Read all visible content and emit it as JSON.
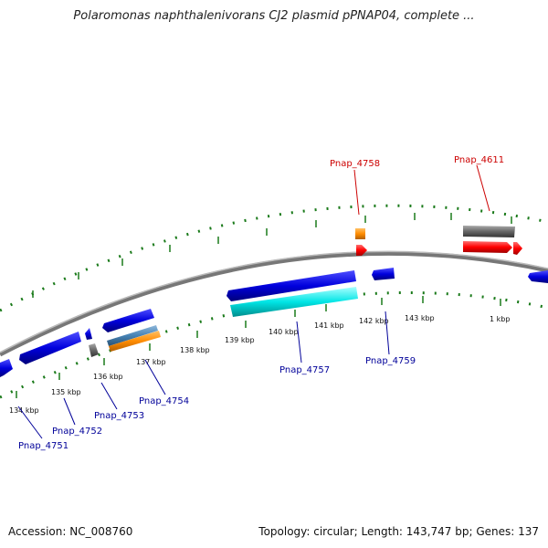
{
  "title": "Polaromonas naphthalenivorans CJ2 plasmid pPNAP04, complete ...",
  "footer": {
    "accession": "Accession: NC_008760",
    "summary": "Topology: circular; Length: 143,747 bp; Genes: 137"
  },
  "colors": {
    "backbone": "#888888",
    "tick": "#1a7a1a",
    "forward_gene": "#0000dd",
    "reverse_gene": "#0000dd",
    "cyan_gene": "#00e5e5",
    "orange_gene": "#ff8c00",
    "red_gene": "#ff0000",
    "gray_gene": "#666666",
    "steel_gene": "#4682b4",
    "label_red": "#cc0000",
    "label_blue": "#000099"
  },
  "tick_labels": [
    "134 kbp",
    "135 kbp",
    "136 kbp",
    "137 kbp",
    "138 kbp",
    "139 kbp",
    "140 kbp",
    "141 kbp",
    "142 kbp",
    "143 kbp",
    "1 kbp"
  ],
  "gene_labels": {
    "top": [
      "Pnap_4758",
      "Pnap_4611"
    ],
    "bottom": [
      "Pnap_4751",
      "Pnap_4752",
      "Pnap_4753",
      "Pnap_4754",
      "Pnap_4757",
      "Pnap_4759"
    ]
  }
}
